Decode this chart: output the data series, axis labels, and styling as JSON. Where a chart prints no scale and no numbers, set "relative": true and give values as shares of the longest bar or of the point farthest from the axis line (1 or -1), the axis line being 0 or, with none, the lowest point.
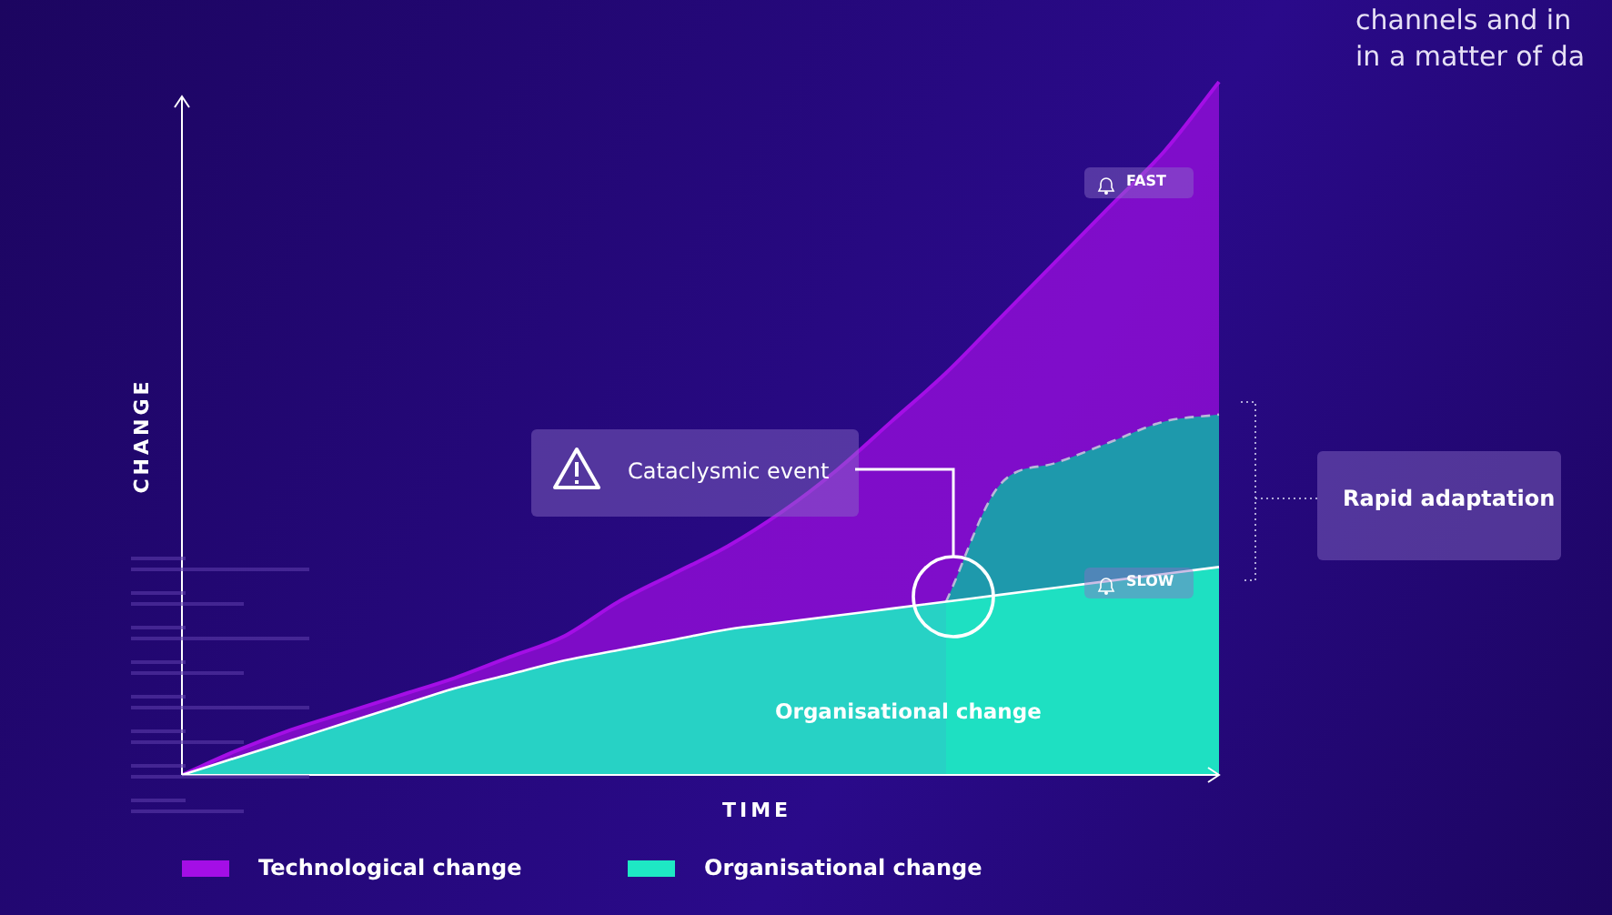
{
  "chart_data": {
    "type": "area",
    "relative": true,
    "xlabel": "TIME",
    "ylabel": "CHANGE",
    "legend": "bottom",
    "marker": "none",
    "categories": [
      null,
      null,
      null,
      null,
      null,
      null,
      null,
      null,
      null,
      null,
      null,
      null,
      null,
      null,
      null,
      null,
      null,
      null,
      null,
      null
    ],
    "series": [
      {
        "name": "Technological change",
        "color": "#a40ee6",
        "values": [
          0,
          0.035,
          0.065,
          0.09,
          0.115,
          0.14,
          0.17,
          0.2,
          0.25,
          0.29,
          0.33,
          0.38,
          0.44,
          0.51,
          0.58,
          0.66,
          0.74,
          0.82,
          0.9,
          1
        ]
      },
      {
        "color": "#14a8a8",
        "line_style": "dashed",
        "values": [
          null,
          null,
          null,
          null,
          null,
          null,
          null,
          null,
          null,
          null,
          null,
          null,
          null,
          null,
          0.25,
          0.42,
          0.45,
          0.48,
          0.51,
          0.52
        ]
      },
      {
        "name": "Organisational change",
        "color": "#1ee8c4",
        "values": [
          0,
          0.025,
          0.05,
          0.075,
          0.1,
          0.125,
          0.145,
          0.165,
          0.18,
          0.195,
          0.21,
          0.22,
          0.23,
          0.24,
          0.25,
          0.26,
          0.27,
          0.28,
          0.29,
          0.3
        ]
      }
    ],
    "annotations": [
      "FAST",
      "SLOW",
      "Cataclysmic event",
      "Rapid adaptation",
      "Organisational change",
      "channels and in",
      "in a matter of da"
    ]
  }
}
